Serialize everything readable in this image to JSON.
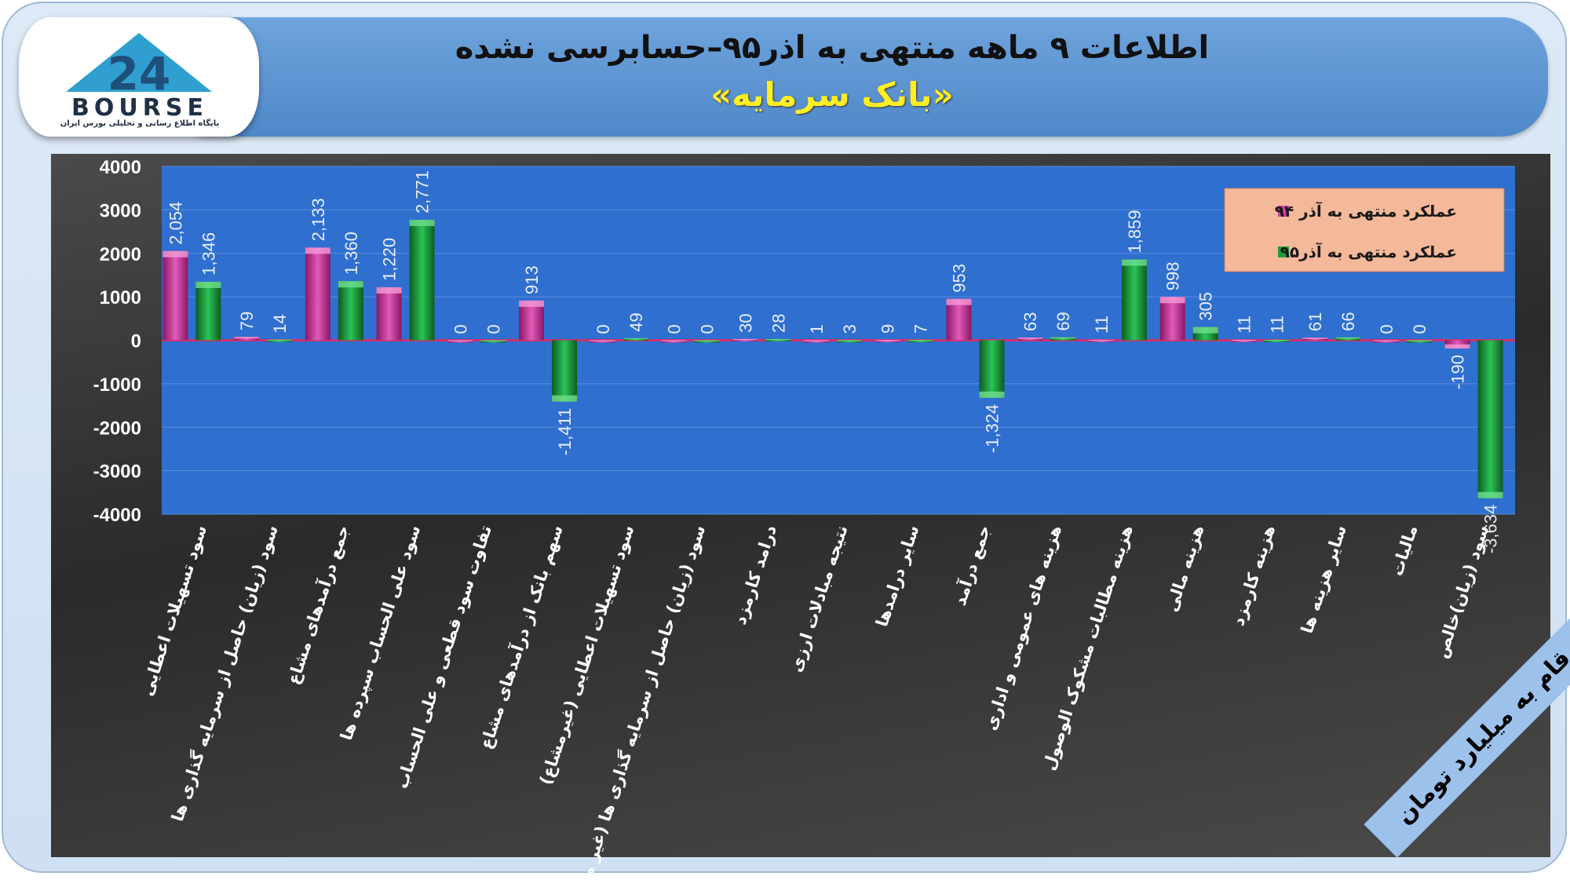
{
  "header": {
    "title": "اطلاعات ۹ ماهه منتهی به اذر۹۵–حسابرسی نشده",
    "subtitle": "«بانک سرمایه»"
  },
  "logo": {
    "word": "BOURSE",
    "number": "24",
    "caption": "پایگاه اطلاع رسانی و تحلیلی بورس ایران"
  },
  "unit_note": "ارقام به میلیارد تومان",
  "colors": {
    "series94": "#d63ea8",
    "series95": "#1d9e3f",
    "plot_bg": "#2f6fd0",
    "zero_line": "#d0306a",
    "legend_bg": "#f4b89a"
  },
  "chart_data": {
    "type": "bar",
    "ylim": [
      -4000,
      4000
    ],
    "yticks": [
      4000,
      3000,
      2000,
      1000,
      0,
      -1000,
      -2000,
      -3000,
      -4000
    ],
    "ytick_labels": [
      "4000",
      "3000",
      "2000",
      "1000",
      "0",
      "-1000",
      "-2000",
      "-3000",
      "-4000"
    ],
    "grid": true,
    "legend_position": "top-right",
    "categories": [
      "سود تسهیلات اعطایی",
      "سود (زیان) حاصل از سرمایه گذاری ها",
      "جمع درآمدهای مشاع",
      "سود علی الحساب سپرده ها",
      "تفاوت سود قطعی و علی الحساب",
      "سهم بانک از درآمدهای مشاع",
      "سود تسهیلات اعطایی (غیرمشاع)",
      "سود (زیان) حاصل از سرمایه گذاری ها (غیر مشاع)",
      "درامد کارمزد",
      "نتیجه مبادلات ارزی",
      "سایر درامدها",
      "جمع درآمد",
      "هزینه های عمومی و اداری",
      "هزینه مطالبات مشکوک الوصول",
      "هزینه مالی",
      "هزینه کارمزد",
      "سایر هزینه ها",
      "مالیات",
      "سود (زیان)خالص"
    ],
    "series": [
      {
        "name": "عملکرد منتهی به آذر ۹۴",
        "values": [
          2054,
          79,
          2133,
          1220,
          0,
          913,
          0,
          0,
          30,
          1,
          9,
          953,
          63,
          11,
          998,
          11,
          61,
          0,
          -190
        ],
        "labels": [
          "2,054",
          "79",
          "2,133",
          "1,220",
          "0",
          "913",
          "0",
          "0",
          "30",
          "1",
          "9",
          "953",
          "63",
          "11",
          "998",
          "11",
          "61",
          "0",
          "-190"
        ]
      },
      {
        "name": "عملکرد منتهی به آذر۹۵",
        "values": [
          1346,
          14,
          1360,
          2771,
          0,
          -1411,
          49,
          0,
          28,
          3,
          7,
          -1324,
          69,
          1859,
          305,
          11,
          66,
          0,
          -3634
        ],
        "labels": [
          "1,346",
          "14",
          "1,360",
          "2,771",
          "0",
          "-1,411",
          "49",
          "0",
          "28",
          "3",
          "7",
          "-1,324",
          "69",
          "1,859",
          "305",
          "11",
          "66",
          "0",
          "-3,634"
        ]
      }
    ]
  }
}
